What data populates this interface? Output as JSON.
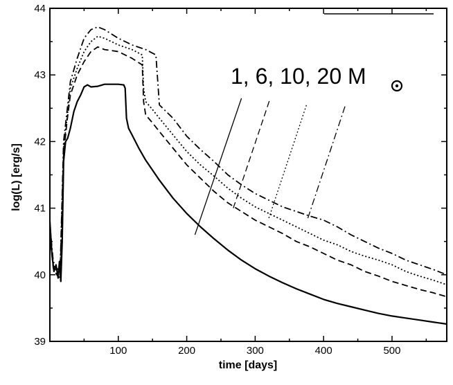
{
  "chart_data": {
    "type": "line",
    "title": "",
    "xlabel": "time [days]",
    "ylabel": "log(L) [erg/s]",
    "xlim": [
      0,
      580
    ],
    "ylim": [
      39,
      44
    ],
    "xticks": [
      100,
      200,
      300,
      400,
      500
    ],
    "yticks": [
      39,
      40,
      41,
      42,
      43,
      44
    ],
    "xtick_labels": [
      "100",
      "200",
      "300",
      "400",
      "500"
    ],
    "ytick_labels": [
      "39",
      "40",
      "41",
      "42",
      "43",
      "44"
    ],
    "annotation": {
      "text": "1, 6, 10, 20 M",
      "symbol": "sun-symbol"
    },
    "series": [
      {
        "name": "1",
        "style": "solid",
        "x": [
          0,
          3,
          6,
          9,
          12,
          14,
          16,
          18,
          20,
          23,
          26,
          30,
          35,
          40,
          45,
          50,
          55,
          60,
          70,
          80,
          90,
          100,
          108,
          110,
          112,
          115,
          120,
          130,
          140,
          160,
          180,
          200,
          220,
          240,
          260,
          280,
          300,
          320,
          340,
          360,
          380,
          400,
          420,
          440,
          460,
          480,
          500,
          520,
          540,
          560,
          580
        ],
        "y": [
          40.8,
          40.3,
          40.05,
          40.15,
          39.95,
          40.2,
          39.9,
          40.5,
          41.7,
          42.0,
          42.05,
          42.2,
          42.45,
          42.6,
          42.7,
          42.82,
          42.85,
          42.82,
          42.83,
          42.86,
          42.86,
          42.86,
          42.85,
          42.8,
          42.35,
          42.2,
          42.1,
          41.9,
          41.72,
          41.42,
          41.15,
          40.92,
          40.72,
          40.54,
          40.37,
          40.22,
          40.09,
          39.98,
          39.88,
          39.79,
          39.71,
          39.63,
          39.57,
          39.52,
          39.47,
          39.42,
          39.38,
          39.35,
          39.32,
          39.29,
          39.26
        ]
      },
      {
        "name": "6",
        "style": "dashed",
        "x": [
          0,
          5,
          10,
          15,
          20,
          25,
          30,
          40,
          50,
          60,
          70,
          80,
          100,
          120,
          135,
          137,
          140,
          150,
          160,
          180,
          200,
          220,
          240,
          260,
          280,
          300,
          320,
          340,
          360,
          380,
          400,
          420,
          440,
          460,
          480,
          500,
          520,
          540,
          560,
          580
        ],
        "y": [
          40.6,
          40.1,
          40.0,
          39.95,
          41.8,
          42.3,
          42.7,
          43.0,
          43.2,
          43.35,
          43.42,
          43.38,
          43.35,
          43.25,
          43.15,
          42.6,
          42.4,
          42.28,
          42.15,
          41.9,
          41.65,
          41.45,
          41.25,
          41.08,
          40.95,
          40.82,
          40.72,
          40.62,
          40.5,
          40.42,
          40.32,
          40.22,
          40.15,
          40.05,
          39.98,
          39.9,
          39.84,
          39.78,
          39.73,
          39.67
        ]
      },
      {
        "name": "10",
        "style": "dotted",
        "x": [
          0,
          5,
          10,
          15,
          20,
          25,
          30,
          40,
          50,
          60,
          70,
          80,
          100,
          120,
          135,
          137,
          140,
          150,
          160,
          180,
          200,
          220,
          240,
          260,
          280,
          300,
          320,
          340,
          360,
          380,
          400,
          420,
          440,
          460,
          480,
          500,
          520,
          540,
          560,
          580
        ],
        "y": [
          40.7,
          40.15,
          40.05,
          40.0,
          41.9,
          42.35,
          42.8,
          43.1,
          43.35,
          43.5,
          43.58,
          43.55,
          43.45,
          43.38,
          43.3,
          42.8,
          42.6,
          42.48,
          42.35,
          42.1,
          41.85,
          41.65,
          41.48,
          41.3,
          41.15,
          41.02,
          40.92,
          40.82,
          40.72,
          40.62,
          40.52,
          40.45,
          40.35,
          40.28,
          40.22,
          40.15,
          40.05,
          39.98,
          39.92,
          39.85
        ]
      },
      {
        "name": "20",
        "style": "dashdot",
        "x": [
          0,
          5,
          10,
          15,
          20,
          25,
          30,
          40,
          50,
          60,
          70,
          80,
          100,
          120,
          140,
          155,
          158,
          160,
          170,
          180,
          200,
          220,
          240,
          260,
          280,
          300,
          320,
          340,
          360,
          380,
          400,
          420,
          440,
          460,
          480,
          500,
          520,
          540,
          560,
          580
        ],
        "y": [
          40.75,
          40.2,
          40.1,
          40.05,
          42.0,
          42.45,
          42.9,
          43.25,
          43.55,
          43.68,
          43.72,
          43.68,
          43.55,
          43.45,
          43.38,
          43.3,
          42.85,
          42.55,
          42.45,
          42.35,
          42.08,
          41.88,
          41.7,
          41.5,
          41.35,
          41.22,
          41.12,
          41.02,
          40.95,
          40.88,
          40.82,
          40.72,
          40.6,
          40.5,
          40.4,
          40.32,
          40.22,
          40.15,
          40.08,
          40.0
        ]
      }
    ],
    "pointer_lines": [
      {
        "series": "1",
        "style": "solid",
        "from": [
          212,
          40.6
        ],
        "to": [
          280,
          42.65
        ]
      },
      {
        "series": "6",
        "style": "dashed",
        "from": [
          268,
          41.0
        ],
        "to": [
          322,
          42.65
        ]
      },
      {
        "series": "10",
        "style": "dotted",
        "from": [
          320,
          40.85
        ],
        "to": [
          375,
          42.55
        ]
      },
      {
        "series": "20",
        "style": "dashdot",
        "from": [
          377,
          40.85
        ],
        "to": [
          432,
          42.55
        ]
      }
    ],
    "legend_position": "top-right"
  }
}
